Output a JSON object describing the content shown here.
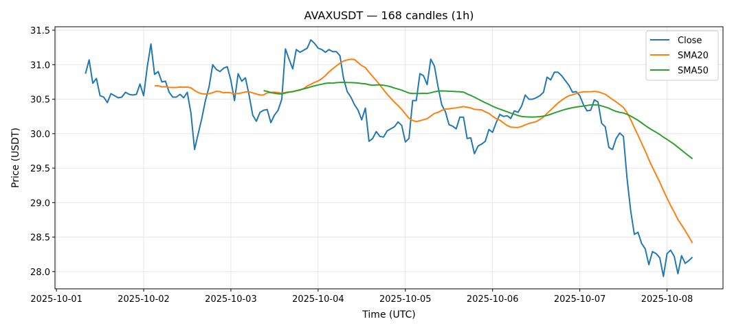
{
  "chart_data": {
    "type": "line",
    "title": "AVAXUSDT — 168 candles (1h)",
    "xlabel": "Time (UTC)",
    "ylabel": "Price (USDT)",
    "x_start": "2025-10-01 08:00",
    "x_interval_hours": 1,
    "xlim_hours_from_2025_10_01": [
      -0.4,
      183.4
    ],
    "ylim": [
      27.75,
      31.55
    ],
    "grid": true,
    "legend_position": "top-right",
    "xticks": [
      {
        "hours": 0,
        "label": "2025-10-01"
      },
      {
        "hours": 24,
        "label": "2025-10-02"
      },
      {
        "hours": 48,
        "label": "2025-10-03"
      },
      {
        "hours": 72,
        "label": "2025-10-04"
      },
      {
        "hours": 96,
        "label": "2025-10-05"
      },
      {
        "hours": 120,
        "label": "2025-10-06"
      },
      {
        "hours": 144,
        "label": "2025-10-07"
      },
      {
        "hours": 168,
        "label": "2025-10-08"
      }
    ],
    "yticks": [
      {
        "value": 28.0,
        "label": "28.0"
      },
      {
        "value": 28.5,
        "label": "28.5"
      },
      {
        "value": 29.0,
        "label": "29.0"
      },
      {
        "value": 29.5,
        "label": "29.5"
      },
      {
        "value": 30.0,
        "label": "30.0"
      },
      {
        "value": 30.5,
        "label": "30.5"
      },
      {
        "value": 31.0,
        "label": "31.0"
      },
      {
        "value": 31.5,
        "label": "31.5"
      }
    ],
    "series": [
      {
        "name": "Close",
        "color": "#1f77b4",
        "sma_window": 1
      },
      {
        "name": "SMA20",
        "color": "#ff7f0e",
        "sma_window": 20
      },
      {
        "name": "SMA50",
        "color": "#2ca02c",
        "sma_window": 50
      }
    ],
    "close": [
      30.87,
      31.07,
      30.73,
      30.8,
      30.55,
      30.53,
      30.45,
      30.58,
      30.55,
      30.52,
      30.53,
      30.6,
      30.57,
      30.56,
      30.57,
      30.72,
      30.55,
      30.97,
      31.3,
      30.86,
      30.9,
      30.75,
      30.76,
      30.6,
      30.53,
      30.53,
      30.57,
      30.52,
      30.6,
      30.3,
      29.77,
      30.0,
      30.22,
      30.48,
      30.68,
      31.0,
      30.93,
      30.9,
      30.95,
      30.97,
      30.77,
      30.48,
      30.87,
      30.76,
      30.81,
      30.56,
      30.27,
      30.18,
      30.31,
      30.34,
      30.35,
      30.16,
      30.27,
      30.34,
      30.5,
      31.23,
      31.08,
      30.94,
      31.22,
      31.18,
      31.21,
      31.24,
      31.36,
      31.31,
      31.24,
      31.22,
      31.18,
      31.22,
      31.19,
      31.19,
      31.13,
      30.8,
      30.61,
      30.53,
      30.42,
      30.34,
      30.2,
      30.37,
      29.89,
      29.93,
      30.03,
      29.96,
      29.95,
      30.04,
      30.07,
      30.1,
      30.17,
      30.12,
      29.88,
      29.93,
      30.48,
      30.48,
      30.87,
      30.84,
      30.71,
      31.08,
      30.98,
      30.68,
      30.42,
      30.32,
      30.13,
      30.11,
      30.07,
      30.24,
      30.24,
      29.93,
      29.94,
      29.71,
      29.82,
      29.85,
      29.89,
      30.06,
      30.02,
      30.16,
      30.28,
      30.25,
      30.26,
      30.22,
      30.33,
      30.31,
      30.4,
      30.56,
      30.5,
      30.5,
      30.52,
      30.55,
      30.6,
      30.82,
      30.78,
      30.89,
      30.89,
      30.84,
      30.77,
      30.7,
      30.6,
      30.61,
      30.55,
      30.42,
      30.33,
      30.34,
      30.49,
      30.46,
      30.15,
      30.1,
      29.8,
      29.77,
      29.93,
      30.01,
      29.96,
      29.35,
      28.88,
      28.54,
      28.57,
      28.41,
      28.33,
      28.1,
      28.29,
      28.26,
      28.2,
      27.93,
      28.26,
      28.31,
      28.22,
      27.97,
      28.23,
      28.12,
      28.16,
      28.21
    ]
  }
}
